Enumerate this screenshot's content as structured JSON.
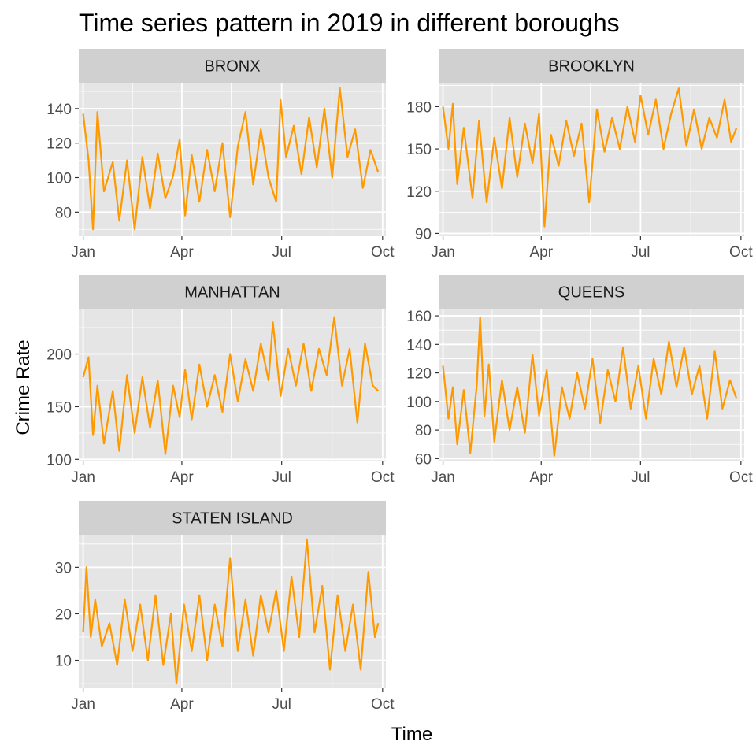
{
  "chart_data": {
    "type": "line",
    "title": "Time series pattern in 2019 in different boroughs",
    "xlabel": "Time",
    "ylabel": "Crime Rate",
    "x_ticks": [
      "Jan",
      "Apr",
      "Jul",
      "Oct"
    ],
    "x_range": [
      "2019-01-01",
      "2019-10-01"
    ],
    "line_color": "#FF9900",
    "panel_bg": "#E5E5E5",
    "strip_bg": "#D0D0D0",
    "grid": true,
    "legend": "none",
    "panels": [
      {
        "name": "BRONX",
        "ylim": [
          66,
          155
        ],
        "y_ticks": [
          80,
          100,
          120,
          140
        ],
        "series": [
          {
            "x": "2019-01-01",
            "y": 137
          },
          {
            "x": "2019-01-06",
            "y": 110
          },
          {
            "x": "2019-01-10",
            "y": 70
          },
          {
            "x": "2019-01-14",
            "y": 138
          },
          {
            "x": "2019-01-20",
            "y": 92
          },
          {
            "x": "2019-01-28",
            "y": 109
          },
          {
            "x": "2019-02-03",
            "y": 75
          },
          {
            "x": "2019-02-10",
            "y": 110
          },
          {
            "x": "2019-02-17",
            "y": 70
          },
          {
            "x": "2019-02-24",
            "y": 112
          },
          {
            "x": "2019-03-03",
            "y": 82
          },
          {
            "x": "2019-03-10",
            "y": 114
          },
          {
            "x": "2019-03-17",
            "y": 88
          },
          {
            "x": "2019-03-24",
            "y": 101
          },
          {
            "x": "2019-03-30",
            "y": 122
          },
          {
            "x": "2019-04-04",
            "y": 78
          },
          {
            "x": "2019-04-10",
            "y": 113
          },
          {
            "x": "2019-04-17",
            "y": 86
          },
          {
            "x": "2019-04-24",
            "y": 116
          },
          {
            "x": "2019-05-01",
            "y": 92
          },
          {
            "x": "2019-05-08",
            "y": 120
          },
          {
            "x": "2019-05-15",
            "y": 77
          },
          {
            "x": "2019-05-22",
            "y": 118
          },
          {
            "x": "2019-05-29",
            "y": 138
          },
          {
            "x": "2019-06-05",
            "y": 96
          },
          {
            "x": "2019-06-12",
            "y": 128
          },
          {
            "x": "2019-06-19",
            "y": 100
          },
          {
            "x": "2019-06-26",
            "y": 86
          },
          {
            "x": "2019-06-30",
            "y": 145
          },
          {
            "x": "2019-07-05",
            "y": 112
          },
          {
            "x": "2019-07-12",
            "y": 130
          },
          {
            "x": "2019-07-19",
            "y": 102
          },
          {
            "x": "2019-07-26",
            "y": 135
          },
          {
            "x": "2019-08-02",
            "y": 106
          },
          {
            "x": "2019-08-09",
            "y": 140
          },
          {
            "x": "2019-08-16",
            "y": 100
          },
          {
            "x": "2019-08-23",
            "y": 152
          },
          {
            "x": "2019-08-30",
            "y": 112
          },
          {
            "x": "2019-09-06",
            "y": 128
          },
          {
            "x": "2019-09-13",
            "y": 94
          },
          {
            "x": "2019-09-20",
            "y": 116
          },
          {
            "x": "2019-09-27",
            "y": 103
          }
        ]
      },
      {
        "name": "BROOKLYN",
        "ylim": [
          88,
          197
        ],
        "y_ticks": [
          90,
          120,
          150,
          180
        ],
        "series": [
          {
            "x": "2019-01-01",
            "y": 180
          },
          {
            "x": "2019-01-06",
            "y": 150
          },
          {
            "x": "2019-01-10",
            "y": 182
          },
          {
            "x": "2019-01-14",
            "y": 125
          },
          {
            "x": "2019-01-20",
            "y": 165
          },
          {
            "x": "2019-01-28",
            "y": 115
          },
          {
            "x": "2019-02-03",
            "y": 170
          },
          {
            "x": "2019-02-10",
            "y": 112
          },
          {
            "x": "2019-02-17",
            "y": 158
          },
          {
            "x": "2019-02-24",
            "y": 122
          },
          {
            "x": "2019-03-03",
            "y": 172
          },
          {
            "x": "2019-03-10",
            "y": 130
          },
          {
            "x": "2019-03-17",
            "y": 168
          },
          {
            "x": "2019-03-24",
            "y": 140
          },
          {
            "x": "2019-03-30",
            "y": 175
          },
          {
            "x": "2019-04-04",
            "y": 95
          },
          {
            "x": "2019-04-10",
            "y": 160
          },
          {
            "x": "2019-04-17",
            "y": 138
          },
          {
            "x": "2019-04-24",
            "y": 170
          },
          {
            "x": "2019-05-01",
            "y": 145
          },
          {
            "x": "2019-05-08",
            "y": 168
          },
          {
            "x": "2019-05-15",
            "y": 112
          },
          {
            "x": "2019-05-22",
            "y": 178
          },
          {
            "x": "2019-05-29",
            "y": 148
          },
          {
            "x": "2019-06-05",
            "y": 172
          },
          {
            "x": "2019-06-12",
            "y": 150
          },
          {
            "x": "2019-06-19",
            "y": 180
          },
          {
            "x": "2019-06-26",
            "y": 155
          },
          {
            "x": "2019-07-01",
            "y": 188
          },
          {
            "x": "2019-07-08",
            "y": 160
          },
          {
            "x": "2019-07-15",
            "y": 185
          },
          {
            "x": "2019-07-22",
            "y": 150
          },
          {
            "x": "2019-07-29",
            "y": 175
          },
          {
            "x": "2019-08-05",
            "y": 193
          },
          {
            "x": "2019-08-12",
            "y": 152
          },
          {
            "x": "2019-08-19",
            "y": 178
          },
          {
            "x": "2019-08-26",
            "y": 150
          },
          {
            "x": "2019-09-02",
            "y": 172
          },
          {
            "x": "2019-09-09",
            "y": 158
          },
          {
            "x": "2019-09-16",
            "y": 185
          },
          {
            "x": "2019-09-22",
            "y": 155
          },
          {
            "x": "2019-09-27",
            "y": 165
          }
        ]
      },
      {
        "name": "MANHATTAN",
        "ylim": [
          98,
          243
        ],
        "y_ticks": [
          100,
          150,
          200
        ],
        "series": [
          {
            "x": "2019-01-01",
            "y": 178
          },
          {
            "x": "2019-01-06",
            "y": 197
          },
          {
            "x": "2019-01-10",
            "y": 123
          },
          {
            "x": "2019-01-14",
            "y": 170
          },
          {
            "x": "2019-01-20",
            "y": 115
          },
          {
            "x": "2019-01-28",
            "y": 165
          },
          {
            "x": "2019-02-03",
            "y": 108
          },
          {
            "x": "2019-02-10",
            "y": 180
          },
          {
            "x": "2019-02-17",
            "y": 125
          },
          {
            "x": "2019-02-24",
            "y": 178
          },
          {
            "x": "2019-03-03",
            "y": 130
          },
          {
            "x": "2019-03-10",
            "y": 175
          },
          {
            "x": "2019-03-17",
            "y": 105
          },
          {
            "x": "2019-03-24",
            "y": 170
          },
          {
            "x": "2019-03-30",
            "y": 140
          },
          {
            "x": "2019-04-04",
            "y": 185
          },
          {
            "x": "2019-04-10",
            "y": 138
          },
          {
            "x": "2019-04-17",
            "y": 190
          },
          {
            "x": "2019-04-24",
            "y": 150
          },
          {
            "x": "2019-05-01",
            "y": 180
          },
          {
            "x": "2019-05-08",
            "y": 145
          },
          {
            "x": "2019-05-15",
            "y": 200
          },
          {
            "x": "2019-05-22",
            "y": 155
          },
          {
            "x": "2019-05-29",
            "y": 195
          },
          {
            "x": "2019-06-05",
            "y": 165
          },
          {
            "x": "2019-06-12",
            "y": 210
          },
          {
            "x": "2019-06-19",
            "y": 175
          },
          {
            "x": "2019-06-23",
            "y": 230
          },
          {
            "x": "2019-06-30",
            "y": 160
          },
          {
            "x": "2019-07-07",
            "y": 205
          },
          {
            "x": "2019-07-14",
            "y": 170
          },
          {
            "x": "2019-07-21",
            "y": 210
          },
          {
            "x": "2019-07-28",
            "y": 165
          },
          {
            "x": "2019-08-04",
            "y": 205
          },
          {
            "x": "2019-08-11",
            "y": 180
          },
          {
            "x": "2019-08-18",
            "y": 235
          },
          {
            "x": "2019-08-25",
            "y": 170
          },
          {
            "x": "2019-09-01",
            "y": 205
          },
          {
            "x": "2019-09-08",
            "y": 135
          },
          {
            "x": "2019-09-15",
            "y": 210
          },
          {
            "x": "2019-09-22",
            "y": 170
          },
          {
            "x": "2019-09-27",
            "y": 165
          }
        ]
      },
      {
        "name": "QUEENS",
        "ylim": [
          58,
          165
        ],
        "y_ticks": [
          60,
          80,
          100,
          120,
          140,
          160
        ],
        "series": [
          {
            "x": "2019-01-01",
            "y": 125
          },
          {
            "x": "2019-01-06",
            "y": 88
          },
          {
            "x": "2019-01-10",
            "y": 110
          },
          {
            "x": "2019-01-14",
            "y": 70
          },
          {
            "x": "2019-01-20",
            "y": 108
          },
          {
            "x": "2019-01-26",
            "y": 64
          },
          {
            "x": "2019-02-01",
            "y": 112
          },
          {
            "x": "2019-02-04",
            "y": 159
          },
          {
            "x": "2019-02-08",
            "y": 90
          },
          {
            "x": "2019-02-12",
            "y": 126
          },
          {
            "x": "2019-02-17",
            "y": 72
          },
          {
            "x": "2019-02-24",
            "y": 115
          },
          {
            "x": "2019-03-03",
            "y": 80
          },
          {
            "x": "2019-03-10",
            "y": 110
          },
          {
            "x": "2019-03-17",
            "y": 78
          },
          {
            "x": "2019-03-24",
            "y": 133
          },
          {
            "x": "2019-03-30",
            "y": 90
          },
          {
            "x": "2019-04-06",
            "y": 122
          },
          {
            "x": "2019-04-13",
            "y": 62
          },
          {
            "x": "2019-04-20",
            "y": 110
          },
          {
            "x": "2019-04-27",
            "y": 88
          },
          {
            "x": "2019-05-04",
            "y": 120
          },
          {
            "x": "2019-05-11",
            "y": 95
          },
          {
            "x": "2019-05-18",
            "y": 130
          },
          {
            "x": "2019-05-25",
            "y": 85
          },
          {
            "x": "2019-06-01",
            "y": 122
          },
          {
            "x": "2019-06-08",
            "y": 100
          },
          {
            "x": "2019-06-15",
            "y": 138
          },
          {
            "x": "2019-06-22",
            "y": 95
          },
          {
            "x": "2019-06-29",
            "y": 125
          },
          {
            "x": "2019-07-06",
            "y": 88
          },
          {
            "x": "2019-07-13",
            "y": 130
          },
          {
            "x": "2019-07-20",
            "y": 105
          },
          {
            "x": "2019-07-27",
            "y": 142
          },
          {
            "x": "2019-08-03",
            "y": 110
          },
          {
            "x": "2019-08-10",
            "y": 138
          },
          {
            "x": "2019-08-17",
            "y": 105
          },
          {
            "x": "2019-08-24",
            "y": 125
          },
          {
            "x": "2019-08-31",
            "y": 88
          },
          {
            "x": "2019-09-07",
            "y": 135
          },
          {
            "x": "2019-09-14",
            "y": 95
          },
          {
            "x": "2019-09-21",
            "y": 115
          },
          {
            "x": "2019-09-27",
            "y": 102
          }
        ]
      },
      {
        "name": "STATEN ISLAND",
        "ylim": [
          4,
          37
        ],
        "y_ticks": [
          10,
          20,
          30
        ],
        "series": [
          {
            "x": "2019-01-01",
            "y": 16
          },
          {
            "x": "2019-01-04",
            "y": 30
          },
          {
            "x": "2019-01-08",
            "y": 15
          },
          {
            "x": "2019-01-12",
            "y": 23
          },
          {
            "x": "2019-01-18",
            "y": 13
          },
          {
            "x": "2019-01-25",
            "y": 18
          },
          {
            "x": "2019-02-01",
            "y": 9
          },
          {
            "x": "2019-02-08",
            "y": 23
          },
          {
            "x": "2019-02-15",
            "y": 12
          },
          {
            "x": "2019-02-22",
            "y": 22
          },
          {
            "x": "2019-03-01",
            "y": 10
          },
          {
            "x": "2019-03-08",
            "y": 24
          },
          {
            "x": "2019-03-15",
            "y": 9
          },
          {
            "x": "2019-03-22",
            "y": 20
          },
          {
            "x": "2019-03-27",
            "y": 5
          },
          {
            "x": "2019-04-03",
            "y": 22
          },
          {
            "x": "2019-04-10",
            "y": 12
          },
          {
            "x": "2019-04-17",
            "y": 24
          },
          {
            "x": "2019-04-24",
            "y": 10
          },
          {
            "x": "2019-05-01",
            "y": 22
          },
          {
            "x": "2019-05-08",
            "y": 13
          },
          {
            "x": "2019-05-15",
            "y": 32
          },
          {
            "x": "2019-05-22",
            "y": 12
          },
          {
            "x": "2019-05-29",
            "y": 23
          },
          {
            "x": "2019-06-05",
            "y": 11
          },
          {
            "x": "2019-06-12",
            "y": 24
          },
          {
            "x": "2019-06-19",
            "y": 16
          },
          {
            "x": "2019-06-26",
            "y": 25
          },
          {
            "x": "2019-07-03",
            "y": 12
          },
          {
            "x": "2019-07-10",
            "y": 28
          },
          {
            "x": "2019-07-17",
            "y": 15
          },
          {
            "x": "2019-07-24",
            "y": 36
          },
          {
            "x": "2019-07-31",
            "y": 16
          },
          {
            "x": "2019-08-07",
            "y": 26
          },
          {
            "x": "2019-08-14",
            "y": 8
          },
          {
            "x": "2019-08-21",
            "y": 24
          },
          {
            "x": "2019-08-28",
            "y": 12
          },
          {
            "x": "2019-09-04",
            "y": 22
          },
          {
            "x": "2019-09-11",
            "y": 8
          },
          {
            "x": "2019-09-18",
            "y": 29
          },
          {
            "x": "2019-09-24",
            "y": 15
          },
          {
            "x": "2019-09-27",
            "y": 18
          }
        ]
      }
    ]
  }
}
